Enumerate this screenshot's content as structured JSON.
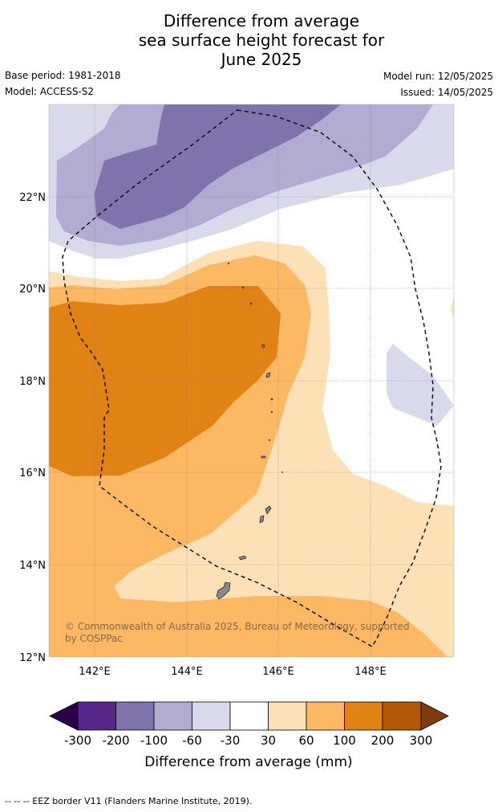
{
  "title": [
    "Difference from average",
    "sea surface height forecast for",
    "June 2025"
  ],
  "base_period": "Base period: 1981-2018",
  "model": "Model: ACCESS-S2",
  "model_run": "Model run: 12/05/2025",
  "issued": "Issued: 14/05/2025",
  "copyright": [
    "© Commonwealth of Australia 2025, Bureau of Meteorology, supported",
    "by COSPPac"
  ],
  "map": {
    "lat_labels": [
      "22°N",
      "20°N",
      "18°N",
      "16°N",
      "14°N",
      "12°N"
    ],
    "lon_labels": [
      "142°E",
      "144°E",
      "146°E",
      "148°E"
    ],
    "lat_values": [
      22,
      20,
      18,
      16,
      14,
      12
    ],
    "lon_values": [
      142,
      144,
      146,
      148
    ]
  },
  "colorbar": {
    "label": "Difference from average (mm)",
    "ticks": [
      "-300",
      "-200",
      "-100",
      "-60",
      "-30",
      "30",
      "60",
      "100",
      "200",
      "300"
    ],
    "low_extend_color": "#2d004b",
    "high_extend_color": "#7f3b08",
    "colors": [
      "#542788",
      "#8073ac",
      "#b2abd2",
      "#d8daeb",
      "#ffffff",
      "#fee0b6",
      "#fdb863",
      "#e08214",
      "#b35806"
    ]
  },
  "footer": "--  --  -- EEZ border V11 (Flanders Marine Institute, 2019)."
}
